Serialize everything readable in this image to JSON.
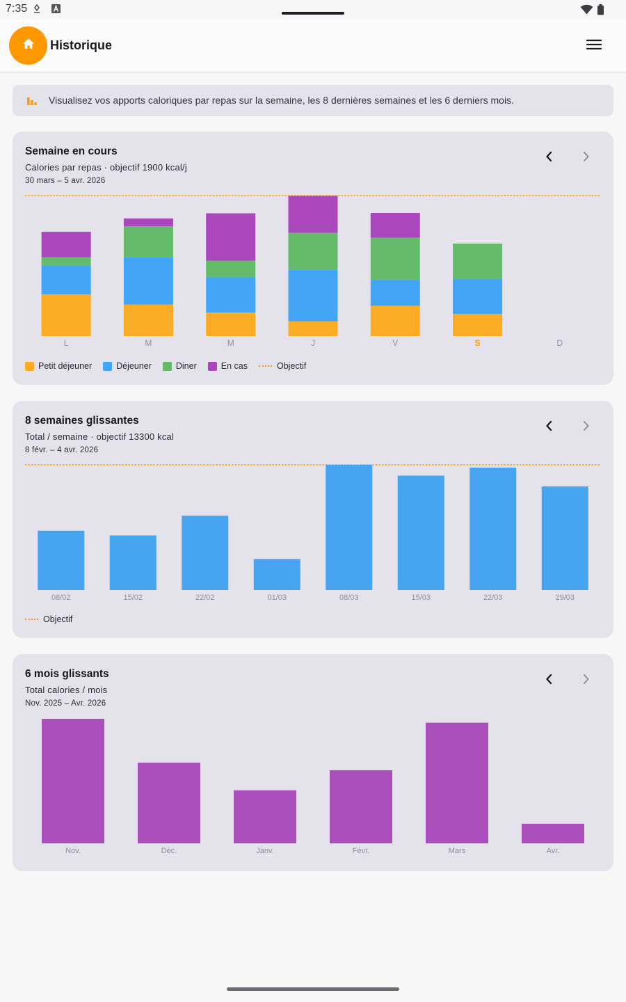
{
  "status_bar": {
    "time": "7:35"
  },
  "app_bar": {
    "title": "Historique"
  },
  "banner": {
    "text": "Visualisez vos apports caloriques par repas sur la semaine, les 8 dernières semaines et les 6 derniers mois."
  },
  "colors": {
    "accent": "#ff9800",
    "breakfast": "#fbab24",
    "lunch": "#42a5f5",
    "dinner": "#66bb6a",
    "snack": "#ab47bc",
    "weekly": "#47a4f0",
    "monthly": "#ab4fbd"
  },
  "week_card": {
    "title": "Semaine en cours",
    "subtitle": "Calories par repas · objectif 1900 kcal/j",
    "range": "30 mars – 5 avr. 2026",
    "legend": {
      "breakfast": "Petit déjeuner",
      "lunch": "Déjeuner",
      "dinner": "Diner",
      "snack": "En cas",
      "target": "Objectif"
    }
  },
  "weeks_card": {
    "title": "8 semaines glissantes",
    "subtitle": "Total / semaine · objectif 13300 kcal",
    "range": "8 févr. – 4 avr. 2026",
    "legend": {
      "target": "Objectif"
    }
  },
  "months_card": {
    "title": "6 mois glissants",
    "subtitle": "Total calories / mois",
    "range": "Nov. 2025 – Avr. 2026"
  },
  "chart_data": [
    {
      "id": "week",
      "type": "bar",
      "stacked": true,
      "categories": [
        "L",
        "M",
        "M",
        "J",
        "V",
        "S",
        "D"
      ],
      "highlight_index": 5,
      "target": 1900,
      "ylim": [
        0,
        1900
      ],
      "series": [
        {
          "name": "Petit déjeuner",
          "key": "breakfast",
          "values": [
            565,
            425,
            320,
            200,
            410,
            300,
            0
          ]
        },
        {
          "name": "Déjeuner",
          "key": "lunch",
          "values": [
            385,
            645,
            475,
            695,
            350,
            475,
            0
          ]
        },
        {
          "name": "Diner",
          "key": "dinner",
          "values": [
            115,
            415,
            225,
            500,
            570,
            475,
            0
          ]
        },
        {
          "name": "En cas",
          "key": "snack",
          "values": [
            345,
            105,
            640,
            500,
            335,
            0,
            0
          ]
        }
      ]
    },
    {
      "id": "weeks",
      "type": "bar",
      "categories": [
        "08/02",
        "15/02",
        "22/02",
        "01/03",
        "08/03",
        "15/03",
        "22/03",
        "29/03"
      ],
      "target": 13300,
      "ylim": [
        0,
        13300
      ],
      "series": [
        {
          "name": "Total",
          "values": [
            6300,
            5800,
            7900,
            3300,
            13300,
            12150,
            13000,
            11000
          ]
        }
      ]
    },
    {
      "id": "months",
      "type": "bar",
      "categories": [
        "Nov.",
        "Déc.",
        "Janv.",
        "Févr.",
        "Mars",
        "Avr."
      ],
      "ylim": [
        0,
        54000
      ],
      "series": [
        {
          "name": "Total",
          "values": [
            54000,
            35000,
            23000,
            31700,
            52300,
            8500
          ]
        }
      ]
    }
  ]
}
